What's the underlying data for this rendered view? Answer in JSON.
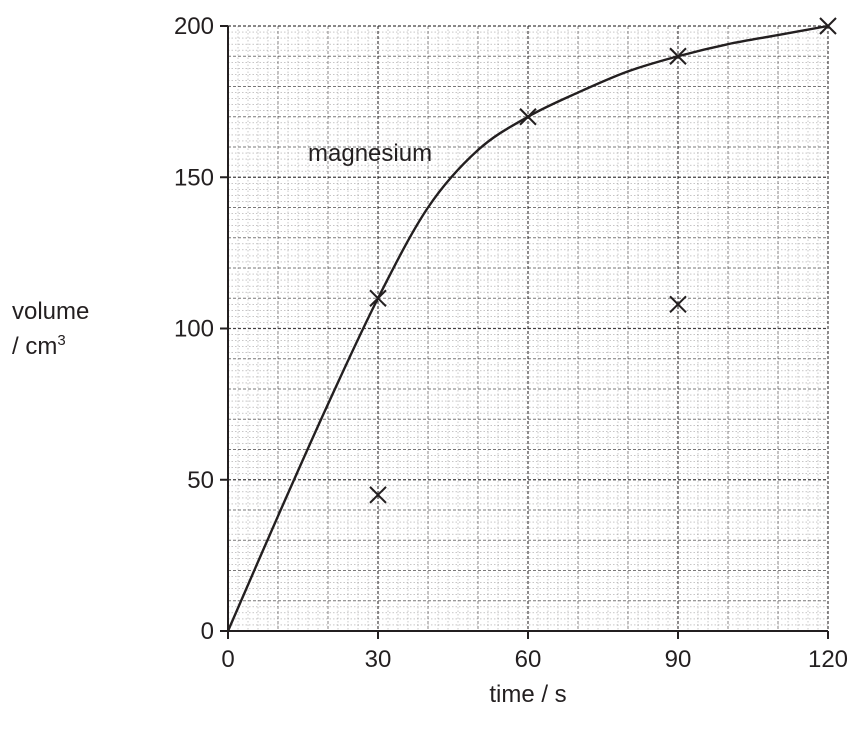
{
  "chart_data": {
    "type": "scatter",
    "title": "",
    "xlabel": "time / s",
    "ylabel_line1": "volume",
    "ylabel_line2": "/ cm",
    "ylabel_sup": "3",
    "xlim": [
      0,
      120
    ],
    "ylim": [
      0,
      200
    ],
    "x_ticks": [
      "0",
      "30",
      "60",
      "90",
      "120"
    ],
    "y_ticks": [
      "0",
      "50",
      "100",
      "150",
      "200"
    ],
    "grid": true,
    "annotation": "magnesium",
    "curve": {
      "label": "magnesium",
      "x": [
        0,
        10,
        20,
        30,
        40,
        50,
        60,
        70,
        80,
        90,
        100,
        110,
        120
      ],
      "y": [
        0,
        38,
        75,
        110,
        140,
        159,
        170,
        178,
        185,
        190,
        194,
        197,
        200
      ]
    },
    "points": [
      {
        "x": 30,
        "y": 110
      },
      {
        "x": 60,
        "y": 170
      },
      {
        "x": 90,
        "y": 190
      },
      {
        "x": 120,
        "y": 200
      },
      {
        "x": 30,
        "y": 45
      },
      {
        "x": 90,
        "y": 108
      }
    ],
    "colors": {
      "ink": "#231f20",
      "grid": "#231f20"
    }
  }
}
